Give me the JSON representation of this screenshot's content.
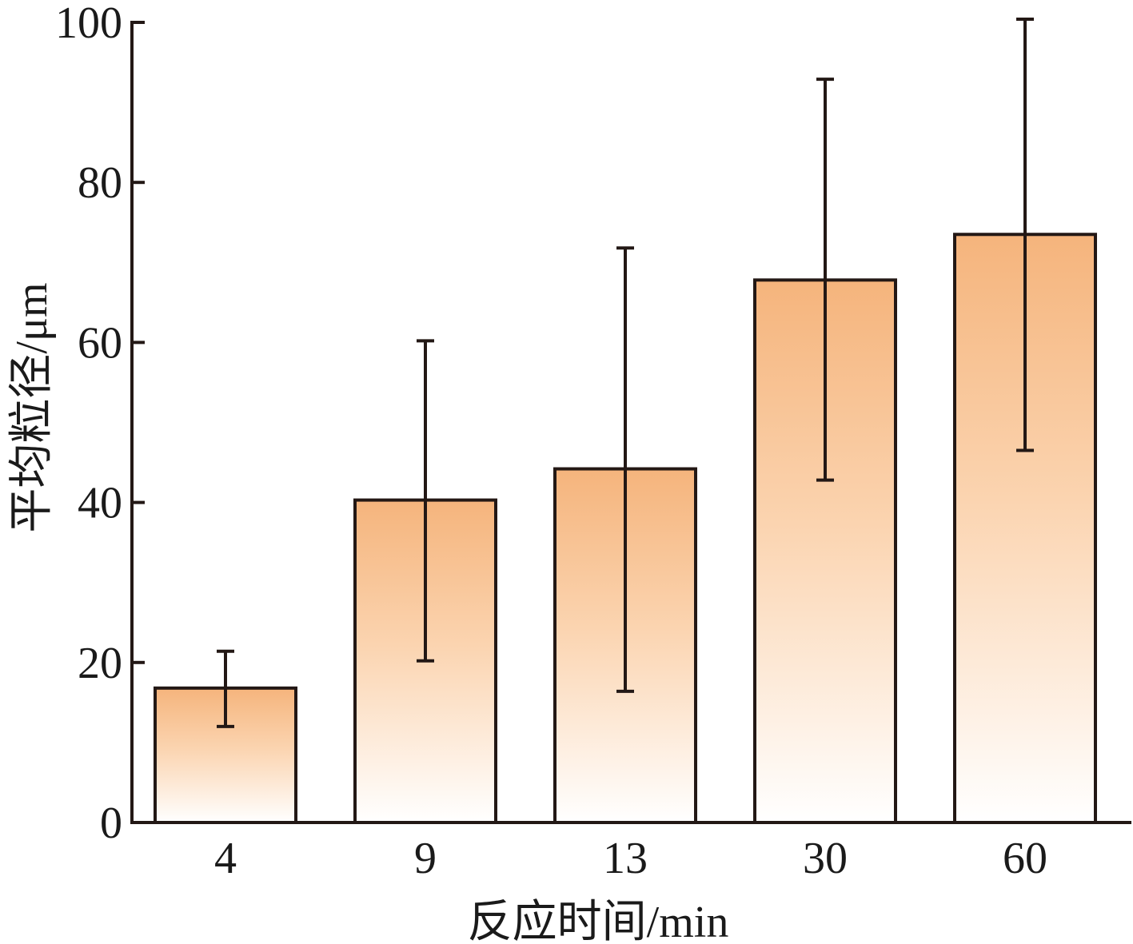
{
  "chart_data": {
    "type": "bar",
    "categories": [
      "4",
      "9",
      "13",
      "30",
      "60"
    ],
    "values": [
      16.8,
      40.3,
      44.2,
      67.8,
      73.5
    ],
    "error_low": [
      12.0,
      20.2,
      16.4,
      42.8,
      46.5
    ],
    "error_high": [
      21.4,
      60.2,
      71.8,
      92.9,
      100.4
    ],
    "xlabel": "反应时间/min",
    "ylabel": "平均粒径/μm",
    "ylim": [
      0,
      100
    ],
    "yticks": [
      0,
      20,
      40,
      60,
      80,
      100
    ],
    "grid": false,
    "colors": {
      "bar_top": "#f5b47c",
      "bar_bottom": "#ffffff",
      "stroke": "#231815"
    }
  }
}
